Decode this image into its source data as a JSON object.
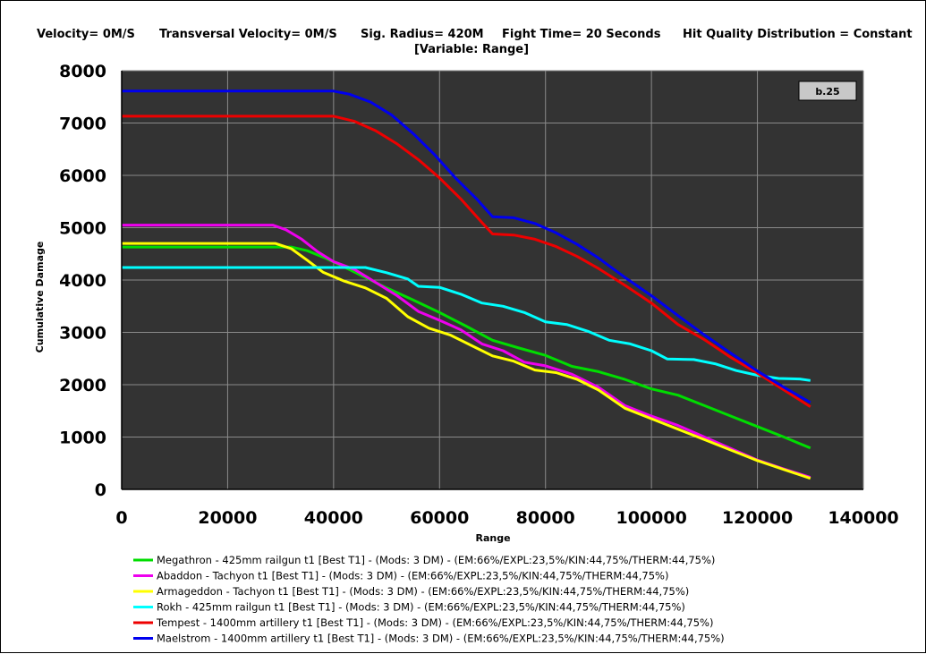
{
  "chart_data": {
    "type": "line",
    "title_line1": {
      "velocity": "Velocity= 0M/S",
      "transversal": "Transversal Velocity= 0M/S",
      "sig_radius": "Sig. Radius= 420M",
      "fight_time": "Fight Time= 20 Seconds",
      "hit_quality": "Hit Quality Distribution = Constant"
    },
    "title_line2": "[Variable: Range]",
    "badge": "b.25",
    "xlabel": "Range",
    "ylabel": "Cumulative Damage",
    "xlim": [
      0,
      140000
    ],
    "ylim": [
      0,
      8000
    ],
    "x_ticks": [
      "0",
      "20000",
      "40000",
      "60000",
      "80000",
      "100000",
      "120000",
      "140000"
    ],
    "y_ticks": [
      "0",
      "1000",
      "2000",
      "3000",
      "4000",
      "5000",
      "6000",
      "7000",
      "8000"
    ],
    "grid": true,
    "plot_background": "#333333",
    "legend_position": "bottom",
    "series": [
      {
        "name": "Megathron - 425mm railgun t1 [Best T1] - (Mods: 3 DM) - (EM:66%/EXPL:23,5%/KIN:44,75%/THERM:44,75%)",
        "color": "#00dd00",
        "points": [
          [
            0,
            4630
          ],
          [
            32000,
            4630
          ],
          [
            35000,
            4560
          ],
          [
            38000,
            4440
          ],
          [
            42000,
            4250
          ],
          [
            45000,
            4100
          ],
          [
            50000,
            3850
          ],
          [
            55000,
            3620
          ],
          [
            60000,
            3380
          ],
          [
            65000,
            3120
          ],
          [
            70000,
            2850
          ],
          [
            75000,
            2700
          ],
          [
            80000,
            2560
          ],
          [
            85000,
            2350
          ],
          [
            90000,
            2250
          ],
          [
            95000,
            2100
          ],
          [
            100000,
            1920
          ],
          [
            105000,
            1800
          ],
          [
            110000,
            1600
          ],
          [
            115000,
            1400
          ],
          [
            120000,
            1200
          ],
          [
            125000,
            1000
          ],
          [
            130000,
            790
          ]
        ]
      },
      {
        "name": "Abaddon - Tachyon t1 [Best T1] - (Mods: 3 DM) - (EM:66%/EXPL:23,5%/KIN:44,75%/THERM:44,75%)",
        "color": "#ee00ee",
        "points": [
          [
            0,
            5050
          ],
          [
            28500,
            5050
          ],
          [
            31000,
            4960
          ],
          [
            34000,
            4780
          ],
          [
            37000,
            4540
          ],
          [
            40000,
            4350
          ],
          [
            44000,
            4200
          ],
          [
            48000,
            3950
          ],
          [
            52000,
            3700
          ],
          [
            56000,
            3400
          ],
          [
            60000,
            3230
          ],
          [
            64000,
            3050
          ],
          [
            68000,
            2780
          ],
          [
            72000,
            2650
          ],
          [
            76000,
            2430
          ],
          [
            80000,
            2360
          ],
          [
            85000,
            2200
          ],
          [
            90000,
            1950
          ],
          [
            95000,
            1600
          ],
          [
            100000,
            1400
          ],
          [
            105000,
            1220
          ],
          [
            110000,
            1000
          ],
          [
            115000,
            780
          ],
          [
            120000,
            560
          ],
          [
            125000,
            390
          ],
          [
            130000,
            230
          ]
        ]
      },
      {
        "name": "Armageddon - Tachyon t1 [Best T1] - (Mods: 3 DM) - (EM:66%/EXPL:23,5%/KIN:44,75%/THERM:44,75%)",
        "color": "#ffff00",
        "points": [
          [
            0,
            4700
          ],
          [
            29000,
            4700
          ],
          [
            32000,
            4600
          ],
          [
            35000,
            4380
          ],
          [
            38000,
            4150
          ],
          [
            42000,
            3980
          ],
          [
            46000,
            3850
          ],
          [
            50000,
            3650
          ],
          [
            54000,
            3300
          ],
          [
            58000,
            3080
          ],
          [
            62000,
            2950
          ],
          [
            66000,
            2750
          ],
          [
            70000,
            2550
          ],
          [
            74000,
            2450
          ],
          [
            78000,
            2280
          ],
          [
            82000,
            2230
          ],
          [
            86000,
            2100
          ],
          [
            90000,
            1900
          ],
          [
            95000,
            1550
          ],
          [
            100000,
            1350
          ],
          [
            105000,
            1150
          ],
          [
            110000,
            950
          ],
          [
            115000,
            750
          ],
          [
            120000,
            550
          ],
          [
            125000,
            380
          ],
          [
            130000,
            210
          ]
        ]
      },
      {
        "name": "Rokh - 425mm railgun t1 [Best T1] - (Mods: 3 DM) - (EM:66%/EXPL:23,5%/KIN:44,75%/THERM:44,75%)",
        "color": "#00ffff",
        "points": [
          [
            0,
            4240
          ],
          [
            46000,
            4240
          ],
          [
            50000,
            4140
          ],
          [
            54000,
            4020
          ],
          [
            56000,
            3880
          ],
          [
            60000,
            3860
          ],
          [
            64000,
            3730
          ],
          [
            68000,
            3560
          ],
          [
            72000,
            3500
          ],
          [
            76000,
            3380
          ],
          [
            80000,
            3200
          ],
          [
            84000,
            3150
          ],
          [
            88000,
            3020
          ],
          [
            92000,
            2850
          ],
          [
            96000,
            2780
          ],
          [
            100000,
            2650
          ],
          [
            103000,
            2490
          ],
          [
            108000,
            2480
          ],
          [
            112000,
            2400
          ],
          [
            116000,
            2270
          ],
          [
            120000,
            2180
          ],
          [
            124000,
            2120
          ],
          [
            128000,
            2110
          ],
          [
            130000,
            2080
          ]
        ]
      },
      {
        "name": "Tempest - 1400mm artillery t1 [Best T1] - (Mods: 3 DM) - (EM:66%/EXPL:23,5%/KIN:44,75%/THERM:44,75%)",
        "color": "#ee0000",
        "points": [
          [
            0,
            7130
          ],
          [
            40000,
            7130
          ],
          [
            44000,
            7030
          ],
          [
            48000,
            6850
          ],
          [
            52000,
            6600
          ],
          [
            56000,
            6300
          ],
          [
            60000,
            5950
          ],
          [
            64000,
            5550
          ],
          [
            68000,
            5100
          ],
          [
            70000,
            4880
          ],
          [
            74000,
            4860
          ],
          [
            78000,
            4780
          ],
          [
            82000,
            4640
          ],
          [
            86000,
            4450
          ],
          [
            90000,
            4220
          ],
          [
            95000,
            3900
          ],
          [
            100000,
            3560
          ],
          [
            105000,
            3150
          ],
          [
            110000,
            2860
          ],
          [
            115000,
            2520
          ],
          [
            120000,
            2220
          ],
          [
            125000,
            1900
          ],
          [
            130000,
            1580
          ]
        ]
      },
      {
        "name": "Maelstrom - 1400mm artillery t1 [Best T1] - (Mods: 3 DM) - (EM:66%/EXPL:23,5%/KIN:44,75%/THERM:44,75%)",
        "color": "#0000ee",
        "points": [
          [
            0,
            7610
          ],
          [
            40000,
            7610
          ],
          [
            43000,
            7550
          ],
          [
            47000,
            7400
          ],
          [
            51000,
            7150
          ],
          [
            55000,
            6800
          ],
          [
            59000,
            6400
          ],
          [
            63000,
            5950
          ],
          [
            67000,
            5550
          ],
          [
            70000,
            5210
          ],
          [
            74000,
            5190
          ],
          [
            78000,
            5080
          ],
          [
            82000,
            4900
          ],
          [
            86000,
            4680
          ],
          [
            90000,
            4420
          ],
          [
            95000,
            4050
          ],
          [
            100000,
            3700
          ],
          [
            105000,
            3320
          ],
          [
            110000,
            2950
          ],
          [
            115000,
            2600
          ],
          [
            120000,
            2260
          ],
          [
            125000,
            1950
          ],
          [
            130000,
            1660
          ]
        ]
      }
    ]
  }
}
